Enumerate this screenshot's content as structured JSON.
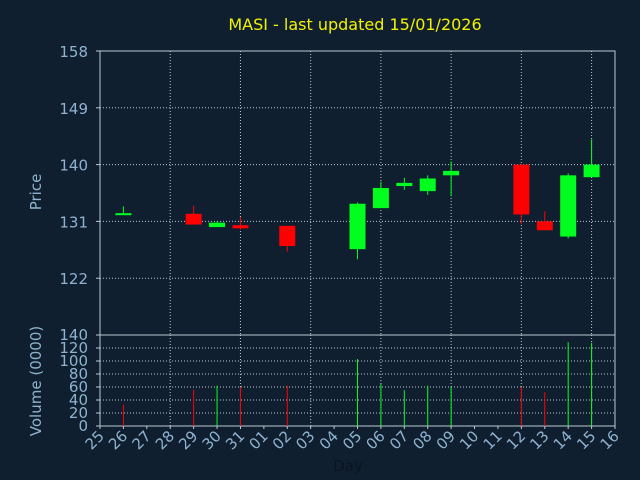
{
  "title": "MASI - last updated 15/01/2026",
  "colors": {
    "up": "#00ff1e",
    "down": "#ff0000",
    "background": "#0f1f30",
    "text": "#8fb3cf",
    "title": "#f2f200",
    "grid": "#bcc8d2"
  },
  "chart_data": [
    {
      "type": "candlestick",
      "ylabel": "Price",
      "ylim": [
        113,
        158
      ],
      "yticks": [
        122,
        131,
        140,
        149,
        158
      ],
      "grid": true,
      "days": [
        "25",
        "26",
        "27",
        "28",
        "29",
        "30",
        "31",
        "01",
        "02",
        "03",
        "04",
        "05",
        "06",
        "07",
        "08",
        "09",
        "10",
        "11",
        "12",
        "13",
        "14",
        "15",
        "16"
      ],
      "candles": [
        {
          "day": "26",
          "open": 132.3,
          "high": 133.4,
          "low": 132.0,
          "close": 132.3
        },
        {
          "day": "29",
          "open": 132.2,
          "high": 133.5,
          "low": 130.5,
          "close": 130.5
        },
        {
          "day": "30",
          "open": 130.1,
          "high": 131.0,
          "low": 130.1,
          "close": 130.8
        },
        {
          "day": "31",
          "open": 130.4,
          "high": 131.7,
          "low": 129.7,
          "close": 129.9
        },
        {
          "day": "02",
          "open": 130.3,
          "high": 130.3,
          "low": 126.2,
          "close": 127.1
        },
        {
          "day": "05",
          "open": 126.6,
          "high": 134.0,
          "low": 125.0,
          "close": 133.8
        },
        {
          "day": "06",
          "open": 133.1,
          "high": 137.3,
          "low": 133.1,
          "close": 136.3
        },
        {
          "day": "07",
          "open": 136.6,
          "high": 137.9,
          "low": 136.0,
          "close": 137.1
        },
        {
          "day": "08",
          "open": 135.8,
          "high": 138.3,
          "low": 135.2,
          "close": 137.8
        },
        {
          "day": "09",
          "open": 138.3,
          "high": 140.5,
          "low": 135.0,
          "close": 139.0
        },
        {
          "day": "12",
          "open": 140.0,
          "high": 140.0,
          "low": 130.6,
          "close": 132.1
        },
        {
          "day": "13",
          "open": 131.0,
          "high": 132.6,
          "low": 129.6,
          "close": 129.6
        },
        {
          "day": "14",
          "open": 128.6,
          "high": 138.6,
          "low": 128.3,
          "close": 138.3
        },
        {
          "day": "15",
          "open": 138.0,
          "high": 144.0,
          "low": 138.0,
          "close": 140.0
        }
      ]
    },
    {
      "type": "bar",
      "ylabel": "Volume (0000)",
      "xlabel": "Day",
      "ylim": [
        0,
        140
      ],
      "yticks": [
        0,
        20,
        40,
        60,
        80,
        100,
        120,
        140
      ],
      "grid": true,
      "bars": [
        {
          "day": "26",
          "value": 33,
          "dir": "down"
        },
        {
          "day": "29",
          "value": 56,
          "dir": "down"
        },
        {
          "day": "30",
          "value": 62,
          "dir": "up"
        },
        {
          "day": "31",
          "value": 60,
          "dir": "down"
        },
        {
          "day": "02",
          "value": 62,
          "dir": "down"
        },
        {
          "day": "05",
          "value": 103,
          "dir": "up"
        },
        {
          "day": "06",
          "value": 65,
          "dir": "up"
        },
        {
          "day": "07",
          "value": 55,
          "dir": "up"
        },
        {
          "day": "08",
          "value": 62,
          "dir": "up"
        },
        {
          "day": "09",
          "value": 60,
          "dir": "up"
        },
        {
          "day": "12",
          "value": 60,
          "dir": "down"
        },
        {
          "day": "13",
          "value": 52,
          "dir": "down"
        },
        {
          "day": "14",
          "value": 129,
          "dir": "up"
        },
        {
          "day": "15",
          "value": 128,
          "dir": "up"
        }
      ]
    }
  ]
}
